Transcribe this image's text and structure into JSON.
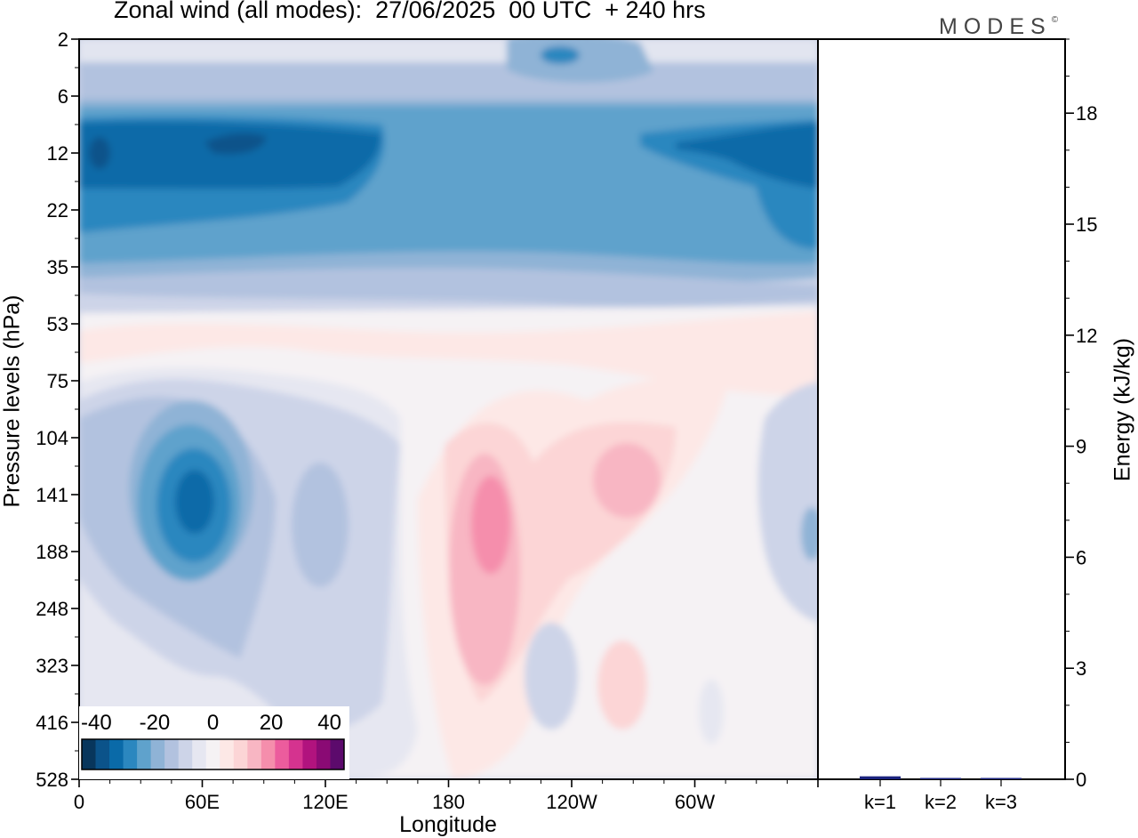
{
  "title": "Zonal wind (all modes):  27/06/2025  00 UTC  + 240 hrs",
  "brand": "MODES",
  "brand_mark": "©",
  "colors": {
    "neg": [
      "#08365c",
      "#0b538a",
      "#0a6aa8",
      "#2b87bf",
      "#5fa2cc",
      "#8fb3d6",
      "#b2c2df",
      "#cdd4e8",
      "#e6e7f1"
    ],
    "neutral": "#f5f2f4",
    "pos": [
      "#fde8e6",
      "#fcd5d6",
      "#f8b6c3",
      "#f58eac",
      "#ec5c9d",
      "#d5338f",
      "#b1137e",
      "#8a0a74",
      "#5c0a6c"
    ]
  },
  "chart_data": [
    {
      "type": "heatmap",
      "title": "Zonal wind (all modes):  27/06/2025  00 UTC  + 240 hrs",
      "xlabel": "Longitude",
      "ylabel": "Pressure levels (hPa)",
      "x_ticks": [
        {
          "lon": 0,
          "label": "0"
        },
        {
          "lon": 60,
          "label": "60E"
        },
        {
          "lon": 120,
          "label": "120E"
        },
        {
          "lon": 180,
          "label": "180"
        },
        {
          "lon": 240,
          "label": "120W"
        },
        {
          "lon": 300,
          "label": "60W"
        }
      ],
      "xlim": [
        0,
        360
      ],
      "y_ticks": [
        "2",
        "6",
        "12",
        "22",
        "35",
        "53",
        "75",
        "104",
        "141",
        "188",
        "248",
        "323",
        "416",
        "528"
      ],
      "y_scale": "model levels (ordinal)",
      "colorbar": {
        "tick_labels": [
          "-40",
          "-20",
          "0",
          "20",
          "40"
        ],
        "min": -45,
        "max": 45,
        "step": 5
      },
      "features": [
        {
          "name": "stratospheric easterly jet",
          "lat_band": "6-35 hPa",
          "lon": [
            0,
            360
          ],
          "level": 12,
          "min_u": -35
        },
        {
          "name": "easterly core",
          "lon": 62,
          "level": 141,
          "min_u": -30
        },
        {
          "name": "westerly core",
          "lon": 200,
          "level": 160,
          "max_u": 20
        },
        {
          "name": "westerly maximum",
          "lon": 264,
          "level": 120,
          "max_u": 15
        }
      ]
    },
    {
      "type": "bar",
      "ylabel": "Energy (kJ/kg)",
      "ylim": [
        0,
        20
      ],
      "y_ticks": [
        "0",
        "3",
        "6",
        "9",
        "12",
        "15",
        "18"
      ],
      "categories": [
        "k=1",
        "k=2",
        "k=3"
      ],
      "values": [
        0.08,
        0.02,
        0.01
      ],
      "bar_color": "#1a237e"
    }
  ]
}
